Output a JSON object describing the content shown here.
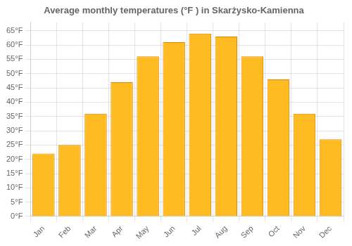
{
  "chart_data": {
    "type": "bar",
    "title": "Average monthly temperatures (°F ) in Skarżysko-Kamienna",
    "categories": [
      "Jan",
      "Feb",
      "Mar",
      "Apr",
      "May",
      "Jun",
      "Jul",
      "Aug",
      "Sep",
      "Oct",
      "Nov",
      "Dec"
    ],
    "values": [
      22,
      25,
      36,
      47,
      56,
      61,
      64,
      63,
      56,
      48,
      36,
      27
    ],
    "color": "#FFBB22",
    "ylim": [
      0,
      68
    ],
    "yticks": [
      {
        "value": 0,
        "label": "0°F"
      },
      {
        "value": 5,
        "label": "5°F"
      },
      {
        "value": 10,
        "label": "10°F"
      },
      {
        "value": 15,
        "label": "15°F"
      },
      {
        "value": 20,
        "label": "20°F"
      },
      {
        "value": 25,
        "label": "25°F"
      },
      {
        "value": 30,
        "label": "30°F"
      },
      {
        "value": 35,
        "label": "35°F"
      },
      {
        "value": 40,
        "label": "40°F"
      },
      {
        "value": 45,
        "label": "45°F"
      },
      {
        "value": 50,
        "label": "50°F"
      },
      {
        "value": 55,
        "label": "55°F"
      },
      {
        "value": 60,
        "label": "60°F"
      },
      {
        "value": 65,
        "label": "65°F"
      }
    ],
    "grid": true
  }
}
